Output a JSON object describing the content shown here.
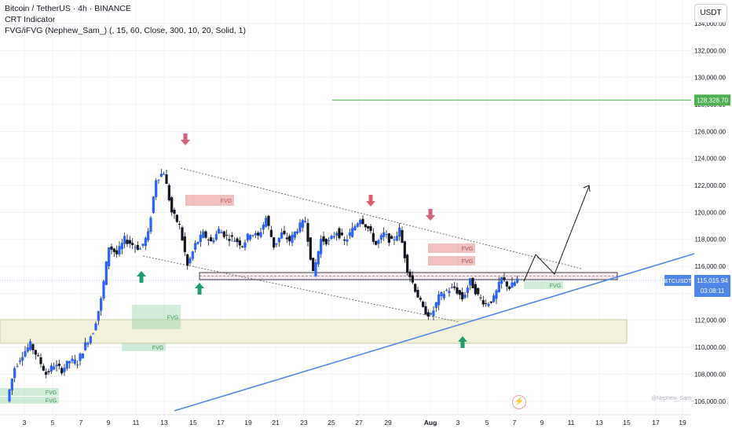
{
  "header": {
    "title": "Bitcoin / TetherUS · 4h · BINANCE",
    "indicator1": "CRT Indicator",
    "indicator2": "FVG/iFVG (Nephew_Sam_) (, 15, 60, Close, 300, 10, 20, Solid, 1)"
  },
  "currency_button": "USDT",
  "credit": "@Nephew_Sam_",
  "flash_icon": "lightning-icon",
  "colors": {
    "up": "#26a69a",
    "down": "#131722",
    "body_up": "#2962ff",
    "bear_zone": "#e58c8c",
    "bull_zone": "#9ad4a8",
    "trendline": "#4f86e8",
    "target_line": "#4caf50"
  },
  "chart_data": {
    "type": "candlestick",
    "symbol": "BTCUSDT",
    "timeframe": "4h",
    "ylim": [
      105000,
      135000
    ],
    "y_ticks": [
      "106,000.00",
      "108,000.00",
      "110,000.00",
      "112,000.00",
      "114,000.00",
      "116,000.00",
      "118,000.00",
      "120,000.00",
      "122,000.00",
      "124,000.00",
      "126,000.00",
      "128,000.00",
      "130,000.00",
      "132,000.00",
      "134,000.00"
    ],
    "x_ticks": [
      "3",
      "5",
      "7",
      "9",
      "11",
      "13",
      "15",
      "17",
      "19",
      "21",
      "23",
      "25",
      "27",
      "29",
      "Aug",
      "3",
      "5",
      "7",
      "9",
      "11",
      "13",
      "15",
      "17",
      "19"
    ],
    "last_price": {
      "label": "BTCUSDT",
      "value": "115,015.94",
      "countdown": "03:08:11"
    },
    "target_price": "128,328.70",
    "price_path": [
      106000,
      108500,
      109500,
      110200,
      109200,
      108000,
      108700,
      108300,
      109000,
      108900,
      110200,
      111200,
      113500,
      117500,
      116900,
      118000,
      117600,
      117300,
      118400,
      122500,
      123000,
      120000,
      119000,
      116000,
      117600,
      118400,
      117800,
      118700,
      118200,
      118000,
      117600,
      118500,
      118200,
      119600,
      117500,
      118400,
      117900,
      118800,
      119400,
      115400,
      118000,
      117800,
      118600,
      117800,
      118700,
      119600,
      118800,
      117600,
      118400,
      117800,
      118700,
      115800,
      114300,
      112800,
      112300,
      113700,
      114200,
      114400,
      113600,
      114900,
      113800,
      113200,
      113600,
      115100,
      114400,
      115000
    ],
    "zones": [
      {
        "label": "FVG",
        "kind": "bearish"
      },
      {
        "label": "FVG",
        "kind": "bearish"
      },
      {
        "label": "FVG",
        "kind": "bearish"
      },
      {
        "label": "FVG",
        "kind": "bullish"
      },
      {
        "label": "FVG",
        "kind": "bullish"
      },
      {
        "label": "FVG",
        "kind": "bullish"
      },
      {
        "label": "FVG",
        "kind": "bullish"
      },
      {
        "label": "FVG",
        "kind": "bullish"
      }
    ],
    "annotations": [
      "down-arrow",
      "down-arrow",
      "down-arrow",
      "up-arrow",
      "up-arrow",
      "up-arrow",
      "descending-wedge",
      "support-trendline",
      "projected-path"
    ]
  }
}
